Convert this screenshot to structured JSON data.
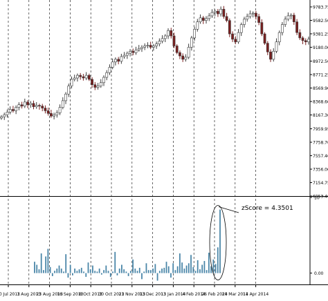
{
  "chart_data": [
    {
      "type": "candlestick",
      "title": "",
      "xlabel": "",
      "ylabel": "",
      "x_tick_labels": [
        "10 Jul 2013",
        "1 Aug 2013",
        "23 Aug 2013",
        "16 Sep 2013",
        "8 Oct 2013",
        "30 Oct 2013",
        "21 Nov 2013",
        "13 Dec 2013",
        "13 Jan 2014",
        "4 Feb 2014",
        "26 Feb 2014",
        "20 Mar 2014",
        "11 Apr 2014"
      ],
      "y_tick_labels": [
        "9783.75",
        "9582.50",
        "9381.25",
        "9180.00",
        "8972.50",
        "8771.25",
        "8569.90",
        "8368.60",
        "8167.30",
        "7959.95",
        "7758.70",
        "7557.40",
        "7356.00",
        "7154.75",
        "6953.40"
      ],
      "ylim": [
        6953.4,
        9783.75
      ],
      "grid": "vertical dashed lines at x ticks",
      "close_approx": [
        8140,
        8170,
        8210,
        8250,
        8230,
        8280,
        8320,
        8300,
        8360,
        8320,
        8340,
        8290,
        8310,
        8300,
        8270,
        8230,
        8190,
        8150,
        8170,
        8200,
        8280,
        8380,
        8480,
        8600,
        8700,
        8720,
        8760,
        8740,
        8720,
        8760,
        8700,
        8620,
        8580,
        8600,
        8650,
        8730,
        8800,
        8880,
        8960,
        9000,
        8970,
        9040,
        9060,
        9090,
        9120,
        9100,
        9140,
        9160,
        9180,
        9200,
        9210,
        9180,
        9200,
        9230,
        9270,
        9310,
        9350,
        9430,
        9350,
        9200,
        9100,
        9050,
        9000,
        9030,
        9180,
        9320,
        9450,
        9560,
        9620,
        9580,
        9610,
        9650,
        9700,
        9720,
        9680,
        9750,
        9640,
        9580,
        9380,
        9300,
        9260,
        9400,
        9520,
        9600,
        9640,
        9680,
        9690,
        9640,
        9550,
        9380,
        9240,
        9110,
        9000,
        9120,
        9260,
        9400,
        9520,
        9600,
        9650,
        9660,
        9560,
        9400,
        9320,
        9280,
        9260,
        9300
      ]
    },
    {
      "type": "bar",
      "title": "",
      "ylabel": "",
      "ylim": [
        -1.5,
        10
      ],
      "y_tick_labels": [
        "10",
        "0.00"
      ],
      "annotation": "zScore = 4.3501",
      "values": [
        1.5,
        1.1,
        0.5,
        2.6,
        0.4,
        2.2,
        3.2,
        0.8,
        -0.4,
        0.3,
        0.6,
        1.0,
        0.6,
        0.2,
        2.5,
        -0.6,
        1.1,
        -0.3,
        0.6,
        0.3,
        0.5,
        0.7,
        0.2,
        -0.5,
        1.4,
        0.5,
        1.0,
        0.3,
        0.2,
        0.6,
        -0.2,
        0.4,
        1.0,
        0.3,
        -0.5,
        0.2,
        2.8,
        -0.3,
        0.6,
        1.1,
        0.5,
        0.2,
        -0.4,
        0.3,
        1.8,
        0.6,
        0.3,
        0.7,
        -0.8,
        0.2,
        1.3,
        0.4,
        0.4,
        0.6,
        1.2,
        -1.0,
        0.3,
        0.6,
        0.7,
        1.5,
        0.9,
        -0.6,
        1.3,
        0.4,
        0.9,
        2.6,
        1.4,
        0.6,
        1.0,
        1.3,
        2.4,
        0.8,
        0.3,
        1.7,
        0.5,
        1.1,
        1.6,
        0.4,
        2.7,
        0.9,
        1.8,
        1.2,
        3.4,
        8.4
      ]
    }
  ]
}
